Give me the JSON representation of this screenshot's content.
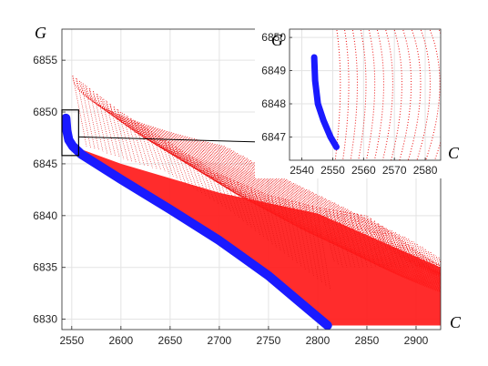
{
  "chart_data": [
    {
      "id": "main",
      "type": "scatter",
      "xlabel": "C",
      "ylabel": "G",
      "xlim": [
        2540,
        2925
      ],
      "ylim": [
        6829,
        6858
      ],
      "xticks": [
        2550,
        2600,
        2650,
        2700,
        2750,
        2800,
        2850,
        2900
      ],
      "yticks": [
        6830,
        6835,
        6840,
        6845,
        6850,
        6855
      ],
      "grid": true,
      "blue_curve": [
        {
          "x": 2544,
          "y": 6849.4
        },
        {
          "x": 2545,
          "y": 6848.2
        },
        {
          "x": 2547,
          "y": 6847.3
        },
        {
          "x": 2551,
          "y": 6846.7
        },
        {
          "x": 2560,
          "y": 6845.9
        },
        {
          "x": 2600,
          "y": 6843.5
        },
        {
          "x": 2650,
          "y": 6840.6
        },
        {
          "x": 2700,
          "y": 6837.6
        },
        {
          "x": 2750,
          "y": 6834.2
        },
        {
          "x": 2780,
          "y": 6831.8
        },
        {
          "x": 2810,
          "y": 6829.4
        }
      ],
      "red_region": {
        "top_edge": [
          {
            "x": 2551,
            "y": 6853.5
          },
          {
            "x": 2600,
            "y": 6850.0
          },
          {
            "x": 2650,
            "y": 6847.0
          },
          {
            "x": 2700,
            "y": 6844.0
          },
          {
            "x": 2750,
            "y": 6842.0
          },
          {
            "x": 2800,
            "y": 6840.8
          },
          {
            "x": 2850,
            "y": 6840.0
          },
          {
            "x": 2925,
            "y": 6835.0
          }
        ],
        "bottom_edge": [
          {
            "x": 2551,
            "y": 6846.7
          },
          {
            "x": 2600,
            "y": 6843.5
          },
          {
            "x": 2700,
            "y": 6837.6
          },
          {
            "x": 2810,
            "y": 6829.4
          },
          {
            "x": 2925,
            "y": 6829.4
          }
        ]
      },
      "zoom_box": {
        "xlim": [
          2540,
          2557
        ],
        "ylim": [
          6845.8,
          6850.2
        ]
      }
    },
    {
      "id": "inset",
      "type": "scatter",
      "xlabel": "C",
      "ylabel": "G",
      "xlim": [
        2536,
        2585
      ],
      "ylim": [
        6846.3,
        6850.25
      ],
      "xticks": [
        2540,
        2550,
        2560,
        2570,
        2580
      ],
      "yticks": [
        6847,
        6848,
        6849,
        6850
      ],
      "grid": true,
      "blue_curve": [
        {
          "x": 2544,
          "y": 6849.4
        },
        {
          "x": 2544.3,
          "y": 6848.7
        },
        {
          "x": 2545.2,
          "y": 6848.0
        },
        {
          "x": 2547.0,
          "y": 6847.5
        },
        {
          "x": 2549.3,
          "y": 6847.0
        },
        {
          "x": 2551.2,
          "y": 6846.7
        }
      ]
    }
  ]
}
